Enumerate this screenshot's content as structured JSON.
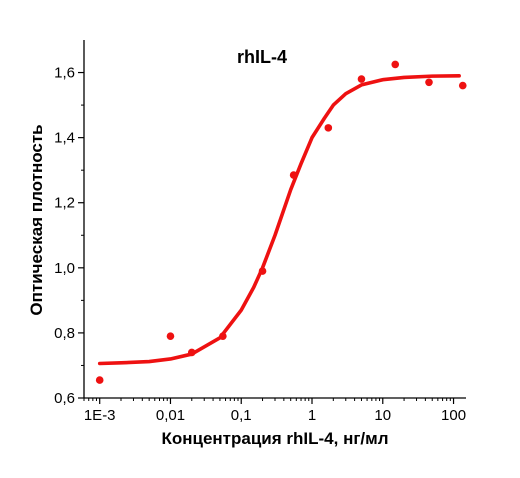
{
  "chart_data": {
    "type": "scatter",
    "title": "rhIL-4",
    "xlabel": "Концентрация rhIL-4, нг/мл",
    "ylabel": "Оптическая плотность",
    "x_scale": "log",
    "xlim": [
      0.0006,
      150
    ],
    "ylim": [
      0.6,
      1.7
    ],
    "x_ticks": [
      {
        "value": 0.001,
        "label": "1E-3"
      },
      {
        "value": 0.01,
        "label": "0,01"
      },
      {
        "value": 0.1,
        "label": "0,1"
      },
      {
        "value": 1,
        "label": "1"
      },
      {
        "value": 10,
        "label": "10"
      },
      {
        "value": 100,
        "label": "100"
      }
    ],
    "y_ticks": [
      {
        "value": 0.6,
        "label": "0,6"
      },
      {
        "value": 0.8,
        "label": "0,8"
      },
      {
        "value": 1.0,
        "label": "1,0"
      },
      {
        "value": 1.2,
        "label": "1,2"
      },
      {
        "value": 1.4,
        "label": "1,4"
      },
      {
        "value": 1.6,
        "label": "1,6"
      }
    ],
    "series": [
      {
        "style": "scatter",
        "color": "#ee1111",
        "points": [
          {
            "x": 0.001,
            "y": 0.655
          },
          {
            "x": 0.01,
            "y": 0.79
          },
          {
            "x": 0.02,
            "y": 0.74
          },
          {
            "x": 0.055,
            "y": 0.79
          },
          {
            "x": 0.2,
            "y": 0.99
          },
          {
            "x": 0.55,
            "y": 1.285
          },
          {
            "x": 1.7,
            "y": 1.43
          },
          {
            "x": 5,
            "y": 1.58
          },
          {
            "x": 15,
            "y": 1.625
          },
          {
            "x": 45,
            "y": 1.57
          },
          {
            "x": 135,
            "y": 1.56
          }
        ]
      },
      {
        "style": "fit-line",
        "color": "#ee1111",
        "points": [
          {
            "x": 0.001,
            "y": 0.706
          },
          {
            "x": 0.002,
            "y": 0.708
          },
          {
            "x": 0.005,
            "y": 0.712
          },
          {
            "x": 0.01,
            "y": 0.72
          },
          {
            "x": 0.02,
            "y": 0.735
          },
          {
            "x": 0.05,
            "y": 0.785
          },
          {
            "x": 0.1,
            "y": 0.87
          },
          {
            "x": 0.15,
            "y": 0.94
          },
          {
            "x": 0.2,
            "y": 1.0
          },
          {
            "x": 0.3,
            "y": 1.1
          },
          {
            "x": 0.5,
            "y": 1.24
          },
          {
            "x": 0.7,
            "y": 1.32
          },
          {
            "x": 1,
            "y": 1.4
          },
          {
            "x": 1.5,
            "y": 1.46
          },
          {
            "x": 2,
            "y": 1.5
          },
          {
            "x": 3,
            "y": 1.535
          },
          {
            "x": 5,
            "y": 1.562
          },
          {
            "x": 10,
            "y": 1.578
          },
          {
            "x": 20,
            "y": 1.585
          },
          {
            "x": 50,
            "y": 1.589
          },
          {
            "x": 120,
            "y": 1.59
          }
        ]
      }
    ]
  }
}
